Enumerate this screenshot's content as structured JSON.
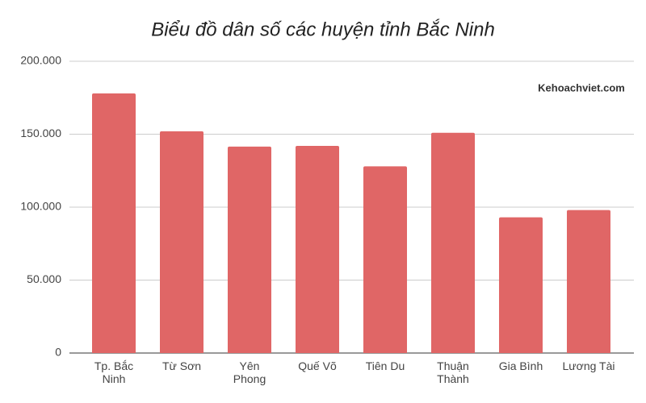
{
  "chart_data": {
    "type": "bar",
    "title": "Biểu đồ dân số các huyện tỉnh Bắc Ninh",
    "annotation": "Kehoachviet.com",
    "categories": [
      "Tp. Bắc Ninh",
      "Từ Sơn",
      "Yên Phong",
      "Quế Võ",
      "Tiên Du",
      "Thuận Thành",
      "Gia Bình",
      "Lương Tài"
    ],
    "values": [
      178000,
      152000,
      141500,
      142000,
      128000,
      151000,
      93000,
      98000
    ],
    "color": "#e06666",
    "ylim": [
      0,
      200000
    ],
    "yticks": [
      0,
      {
        "value": 50000,
        "label": "50.000"
      },
      {
        "value": 100000,
        "label": "100.000"
      },
      {
        "value": 150000,
        "label": "150.000"
      },
      {
        "value": 200000,
        "label": "200.000"
      }
    ],
    "grid": true
  }
}
